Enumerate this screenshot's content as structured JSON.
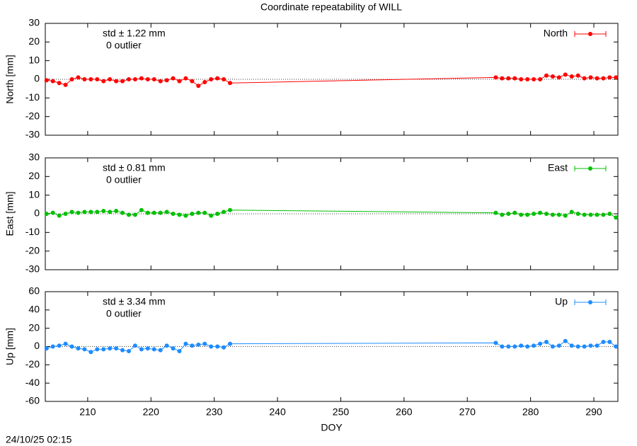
{
  "title": "Coordinate repeatability of WILL",
  "timestamp": "24/10/25 02:15",
  "chart_data": [
    {
      "type": "line",
      "ylabel": "North [mm]",
      "annotations": [
        "std ± 1.22 mm",
        "0 outlier"
      ],
      "xlim": [
        203.3,
        293.8
      ],
      "xticks": [
        210,
        220,
        230,
        240,
        250,
        260,
        270,
        280,
        290
      ],
      "ylim": [
        -30,
        30
      ],
      "yticks": [
        -30,
        -20,
        -10,
        0,
        10,
        20,
        30
      ],
      "legend": "upper right",
      "x": [
        203.5,
        204.5,
        205.5,
        206.5,
        207.5,
        208.5,
        209.5,
        210.5,
        211.5,
        212.5,
        213.5,
        214.5,
        215.5,
        216.5,
        217.5,
        218.5,
        219.5,
        220.5,
        221.5,
        222.5,
        223.5,
        224.5,
        225.5,
        226.5,
        227.5,
        228.5,
        229.5,
        230.5,
        231.5,
        232.5,
        274.5,
        275.5,
        276.5,
        277.5,
        278.5,
        279.5,
        280.5,
        281.5,
        282.5,
        283.5,
        284.5,
        285.5,
        286.5,
        287.5,
        288.5,
        289.5,
        290.5,
        291.5,
        292.5,
        293.5
      ],
      "series": [
        {
          "name": "North",
          "color": "#ff0000",
          "values": [
            -0.5,
            -1,
            -2,
            -3,
            0,
            1,
            0,
            0,
            0,
            -1,
            0,
            -1,
            -1,
            0,
            0,
            0.5,
            0,
            0,
            -1,
            -0.5,
            0.5,
            -1,
            0.5,
            -1,
            -3.5,
            -1.5,
            0,
            0.5,
            0,
            -2,
            1,
            0.5,
            0.5,
            0.5,
            0,
            0,
            0,
            0,
            2,
            1.5,
            1,
            2.5,
            1.5,
            2,
            0.5,
            1,
            0.5,
            0.5,
            1,
            1
          ]
        }
      ]
    },
    {
      "type": "line",
      "ylabel": "East [mm]",
      "annotations": [
        "std ± 0.81 mm",
        "0 outlier"
      ],
      "xlim": [
        203.3,
        293.8
      ],
      "xticks": [
        210,
        220,
        230,
        240,
        250,
        260,
        270,
        280,
        290
      ],
      "ylim": [
        -30,
        30
      ],
      "yticks": [
        -30,
        -20,
        -10,
        0,
        10,
        20,
        30
      ],
      "legend": "upper right",
      "x": [
        203.5,
        204.5,
        205.5,
        206.5,
        207.5,
        208.5,
        209.5,
        210.5,
        211.5,
        212.5,
        213.5,
        214.5,
        215.5,
        216.5,
        217.5,
        218.5,
        219.5,
        220.5,
        221.5,
        222.5,
        223.5,
        224.5,
        225.5,
        226.5,
        227.5,
        228.5,
        229.5,
        230.5,
        231.5,
        232.5,
        274.5,
        275.5,
        276.5,
        277.5,
        278.5,
        279.5,
        280.5,
        281.5,
        282.5,
        283.5,
        284.5,
        285.5,
        286.5,
        287.5,
        288.5,
        289.5,
        290.5,
        291.5,
        292.5,
        293.5
      ],
      "series": [
        {
          "name": "East",
          "color": "#00c000",
          "values": [
            0,
            0.5,
            -1,
            0,
            1,
            0.5,
            1,
            1,
            1,
            1.5,
            1,
            1.5,
            0.5,
            -0.5,
            -0.5,
            2,
            0.5,
            0.5,
            0.5,
            1,
            0,
            -0.5,
            -1,
            0,
            0.5,
            0.5,
            -1,
            0,
            1,
            2,
            0.5,
            -0.5,
            0,
            0.5,
            -0.5,
            -0.5,
            0,
            0.5,
            0,
            -0.5,
            -0.5,
            -1,
            1,
            0,
            -0.5,
            -0.5,
            -0.5,
            -0.5,
            0,
            -2
          ]
        }
      ]
    },
    {
      "type": "line",
      "ylabel": "Up [mm]",
      "xlabel": "DOY",
      "annotations": [
        "std ± 3.34 mm",
        "0 outlier"
      ],
      "xlim": [
        203.3,
        293.8
      ],
      "xticks": [
        210,
        220,
        230,
        240,
        250,
        260,
        270,
        280,
        290
      ],
      "ylim": [
        -60,
        60
      ],
      "yticks": [
        -60,
        -40,
        -20,
        0,
        20,
        40,
        60
      ],
      "legend": "upper right",
      "x": [
        203.5,
        204.5,
        205.5,
        206.5,
        207.5,
        208.5,
        209.5,
        210.5,
        211.5,
        212.5,
        213.5,
        214.5,
        215.5,
        216.5,
        217.5,
        218.5,
        219.5,
        220.5,
        221.5,
        222.5,
        223.5,
        224.5,
        225.5,
        226.5,
        227.5,
        228.5,
        229.5,
        230.5,
        231.5,
        232.5,
        274.5,
        275.5,
        276.5,
        277.5,
        278.5,
        279.5,
        280.5,
        281.5,
        282.5,
        283.5,
        284.5,
        285.5,
        286.5,
        287.5,
        288.5,
        289.5,
        290.5,
        291.5,
        292.5,
        293.5
      ],
      "series": [
        {
          "name": "Up",
          "color": "#1e8cff",
          "values": [
            -2,
            0,
            1,
            3,
            0,
            -2,
            -3,
            -6,
            -3,
            -3,
            -2,
            -2,
            -4,
            -5,
            1,
            -3,
            -2,
            -3,
            -4,
            1,
            -2,
            -5,
            3,
            1,
            2,
            3,
            0,
            0,
            -1,
            3,
            4,
            0,
            0,
            0,
            1,
            0,
            1,
            3,
            5,
            0,
            1,
            6,
            1,
            0,
            0,
            1,
            1,
            5,
            5,
            0
          ]
        }
      ]
    }
  ]
}
